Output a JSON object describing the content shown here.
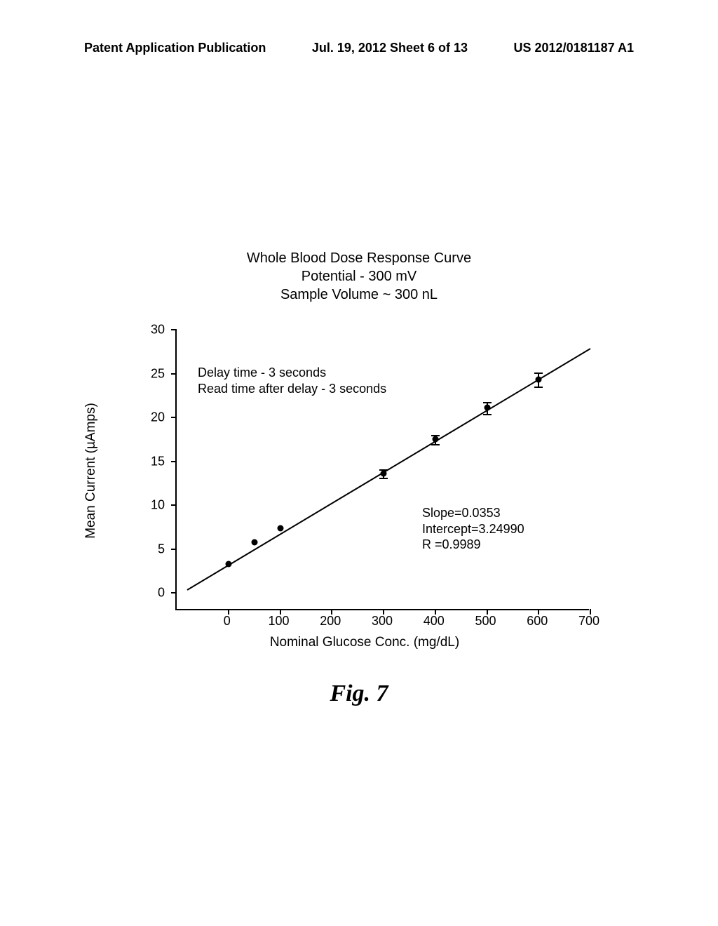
{
  "header": {
    "left": "Patent Application Publication",
    "center": "Jul. 19, 2012  Sheet 6 of 13",
    "right": "US 2012/0181187 A1"
  },
  "chart": {
    "type": "scatter",
    "title_line1": "Whole Blood Dose Response Curve",
    "title_line2": "Potential - 300 mV",
    "title_line3": "Sample Volume ~ 300 nL",
    "y_axis_title": "Mean Current (µAmps)",
    "x_axis_title": "Nominal Glucose Conc. (mg/dL)",
    "xlim": [
      -100,
      700
    ],
    "ylim": [
      -2,
      30
    ],
    "x_ticks": [
      0,
      100,
      200,
      300,
      400,
      500,
      600,
      700
    ],
    "y_ticks": [
      0,
      5,
      10,
      15,
      20,
      25,
      30
    ],
    "x_tick_labels": [
      "0",
      "100",
      "200",
      "300",
      "400",
      "500",
      "600",
      "700"
    ],
    "y_tick_labels": [
      "0",
      "5",
      "10",
      "15",
      "20",
      "25",
      "30"
    ],
    "data_points": [
      {
        "x": 0,
        "y": 3.3,
        "err": 0
      },
      {
        "x": 50,
        "y": 5.8,
        "err": 0
      },
      {
        "x": 100,
        "y": 7.4,
        "err": 0
      },
      {
        "x": 300,
        "y": 13.6,
        "err": 0.5
      },
      {
        "x": 400,
        "y": 17.5,
        "err": 0.5
      },
      {
        "x": 500,
        "y": 21.1,
        "err": 0.7
      },
      {
        "x": 600,
        "y": 24.3,
        "err": 0.8
      }
    ],
    "regression": {
      "slope": 0.0353,
      "intercept": 3.2499,
      "x_start": -80,
      "x_end": 700
    },
    "annotation_delay_line1": "Delay time - 3 seconds",
    "annotation_delay_line2": "Read time after delay - 3 seconds",
    "annotation_stats_line1": "Slope=0.0353",
    "annotation_stats_line2": "Intercept=3.24990",
    "annotation_stats_line3": "R =0.9989",
    "point_color": "#000000",
    "line_color": "#000000",
    "background_color": "#ffffff"
  },
  "figure_label": "Fig. 7"
}
